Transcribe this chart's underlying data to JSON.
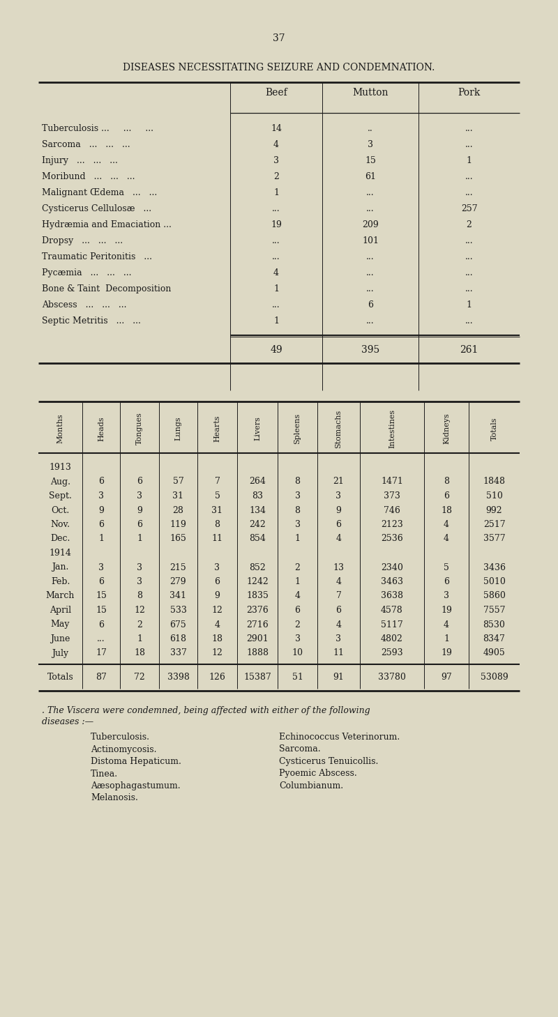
{
  "page_number": "37",
  "title": "DISEASES NECESSITATING SEIZURE AND CONDEMNATION.",
  "bg_color": "#ddd9c4",
  "text_color": "#1a1a1a",
  "table1_rows": [
    [
      "Tuberculosis ...     ...     ...",
      "14",
      "..",
      "..."
    ],
    [
      "Sarcoma   ...   ...   ...",
      "4",
      "3",
      "..."
    ],
    [
      "Injury   ...   ...   ...",
      "3",
      "15",
      "1"
    ],
    [
      "Moribund   ...   ...   ...",
      "2",
      "61",
      "..."
    ],
    [
      "Malignant Œdema   ...   ...",
      "1",
      "...",
      "..."
    ],
    [
      "Cysticerus Cellulosæ   ...",
      "...",
      "...",
      "257"
    ],
    [
      "Hydræmia and Emaciation ...",
      "19",
      "209",
      "2"
    ],
    [
      "Dropsy   ...   ...   ...",
      "...",
      "101",
      "..."
    ],
    [
      "Traumatic Peritonitis   ...",
      "...",
      "...",
      "..."
    ],
    [
      "Pycæmia   ...   ...   ...",
      "4",
      "...",
      "..."
    ],
    [
      "Bone & Taint  Decomposition",
      "1",
      "...",
      "..."
    ],
    [
      "Abscess   ...   ...   ...",
      "...",
      "6",
      "1"
    ],
    [
      "Septic Metritis   ...   ...",
      "1",
      "...",
      "..."
    ]
  ],
  "table1_totals": [
    "",
    "49",
    "395",
    "261"
  ],
  "table2_headers": [
    "Months",
    "Heads",
    "Tongues",
    "Lungs",
    "Hearts",
    "Livers",
    "Spleens",
    "Stomachs",
    "Intestines",
    "Kidneys",
    "Totals"
  ],
  "table2_rows": [
    [
      "1913",
      "",
      "",
      "",
      "",
      "",
      "",
      "",
      "",
      "",
      ""
    ],
    [
      "Aug.",
      "6",
      "6",
      "57",
      "7",
      "264",
      "8",
      "21",
      "1471",
      "8",
      "1848"
    ],
    [
      "Sept.",
      "3",
      "3",
      "31",
      "5",
      "83",
      "3",
      "3",
      "373",
      "6",
      "510"
    ],
    [
      "Oct.",
      "9",
      "9",
      "28",
      "31",
      "134",
      "8",
      "9",
      "746",
      "18",
      "992"
    ],
    [
      "Nov.",
      "6",
      "6",
      "119",
      "8",
      "242",
      "3",
      "6",
      "2123",
      "4",
      "2517"
    ],
    [
      "Dec.",
      "1",
      "1",
      "165",
      "11",
      "854",
      "1",
      "4",
      "2536",
      "4",
      "3577"
    ],
    [
      "1914",
      "",
      "",
      "",
      "",
      "",
      "",
      "",
      "",
      "",
      ""
    ],
    [
      "Jan.",
      "3",
      "3",
      "215",
      "3",
      "852",
      "2",
      "13",
      "2340",
      "5",
      "3436"
    ],
    [
      "Feb.",
      "6",
      "3",
      "279",
      "6",
      "1242",
      "1",
      "4",
      "3463",
      "6",
      "5010"
    ],
    [
      "March",
      "15",
      "8",
      "341",
      "9",
      "1835",
      "4",
      "7",
      "3638",
      "3",
      "5860"
    ],
    [
      "April",
      "15",
      "12",
      "533",
      "12",
      "2376",
      "6",
      "6",
      "4578",
      "19",
      "7557"
    ],
    [
      "May",
      "6",
      "2",
      "675",
      "4",
      "2716",
      "2",
      "4",
      "5117",
      "4",
      "8530"
    ],
    [
      "June",
      "...",
      "1",
      "618",
      "18",
      "2901",
      "3",
      "3",
      "4802",
      "1",
      "8347"
    ],
    [
      "July",
      "17",
      "18",
      "337",
      "12",
      "1888",
      "10",
      "11",
      "2593",
      "19",
      "4905"
    ]
  ],
  "table2_totals": [
    "Totals",
    "87",
    "72",
    "3398",
    "126",
    "15387",
    "51",
    "91",
    "33780",
    "97",
    "53089"
  ],
  "footer_intro": ". The Viscera were condemned, being affected with either of the following\ndiseases :—",
  "footer_list": [
    "Tuberculosis.",
    "Actinomycosis.",
    "Distoma Hepaticum.",
    "Tinea.",
    "Aæsophagastumum.",
    "Melanosis.",
    "Echinococcus Veterinorum.",
    "Sarcoma.",
    "Cysticerus Tenuicollis.",
    "Pyoemic Abscess.",
    "Columbianum."
  ]
}
